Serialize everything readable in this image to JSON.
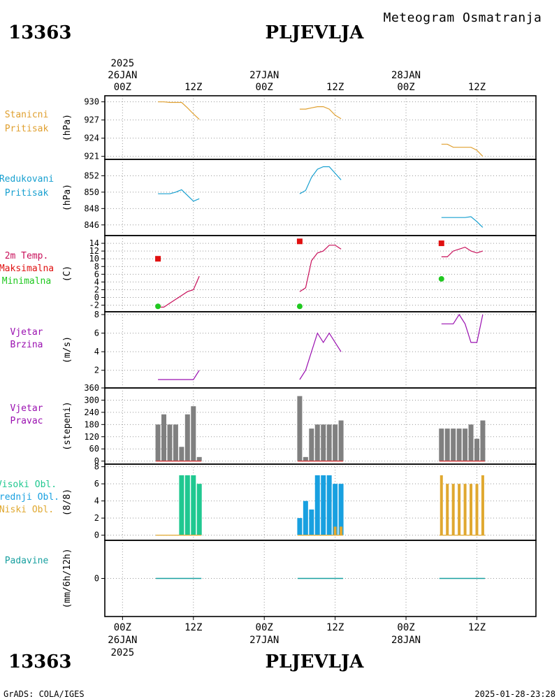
{
  "header": {
    "station_id": "13363",
    "station_name": "PLJEVLJA",
    "subtitle": "Meteogram Osmatranja"
  },
  "footer": {
    "station_id": "13363",
    "station_name": "PLJEVLJA",
    "credit": "GrADS: COLA/IGES",
    "timestamp": "2025-01-28-23:28"
  },
  "time_axis": {
    "top_year": "2025",
    "bottom_year": "2025",
    "hour_labels": [
      "00Z",
      "12Z",
      "00Z",
      "12Z",
      "00Z",
      "12Z"
    ],
    "hour_values": [
      0,
      12,
      24,
      36,
      48,
      60
    ],
    "day_labels": [
      {
        "label": "26JAN",
        "t": 0
      },
      {
        "label": "27JAN",
        "t": 24
      },
      {
        "label": "28JAN",
        "t": 48
      }
    ],
    "range": [
      -3,
      70
    ]
  },
  "colors": {
    "station_pressure": "#e0a030",
    "reduced_pressure": "#18a0d0",
    "temperature": "#c8105a",
    "maximum": "#e01010",
    "minimum": "#20c820",
    "wind": "#9a10b0",
    "direction_bar": "#808080",
    "direction_calm": "#d04040",
    "high_cloud": "#20c890",
    "mid_cloud": "#18a0e0",
    "low_cloud": "#e0a830",
    "precip": "#18a0a0"
  },
  "chart_data": [
    {
      "type": "line",
      "id": "station_pressure",
      "labels": [
        "Stanicni",
        "Pritisak"
      ],
      "ylabel": "(hPa)",
      "yticks": [
        "930",
        "927",
        "924",
        "921"
      ],
      "ylim": [
        920.5,
        931
      ],
      "tickvals": [
        930,
        927,
        924,
        921
      ],
      "series": [
        {
          "x": [
            6,
            7,
            8,
            9,
            10,
            11,
            12,
            13
          ],
          "y": [
            930,
            930,
            929.9,
            929.9,
            929.9,
            929,
            928,
            927.1
          ]
        },
        {
          "x": [
            30,
            31,
            32,
            33,
            34,
            35,
            36,
            37
          ],
          "y": [
            928.8,
            928.8,
            929,
            929.2,
            929.2,
            928.8,
            927.8,
            927.2
          ]
        },
        {
          "x": [
            54,
            55,
            56,
            57,
            58,
            59,
            60,
            61
          ],
          "y": [
            923,
            923,
            922.5,
            922.5,
            922.5,
            922.5,
            922,
            921
          ]
        }
      ]
    },
    {
      "type": "line",
      "id": "reduced_pressure",
      "labels": [
        "Redukovani",
        "Pritisak"
      ],
      "ylabel": "(hPa)",
      "yticks": [
        "852",
        "850",
        "848",
        "846"
      ],
      "ylim": [
        844.7,
        854
      ],
      "tickvals": [
        852,
        850,
        848,
        846
      ],
      "series": [
        {
          "x": [
            6,
            7,
            8,
            9,
            10,
            11,
            12,
            13
          ],
          "y": [
            849.8,
            849.8,
            849.8,
            850.0,
            850.3,
            849.6,
            848.9,
            849.2
          ]
        },
        {
          "x": [
            30,
            31,
            32,
            33,
            34,
            35,
            36,
            37
          ],
          "y": [
            849.8,
            850.2,
            851.8,
            852.8,
            853.1,
            853.1,
            852.3,
            851.5
          ]
        },
        {
          "x": [
            54,
            55,
            56,
            57,
            58,
            59,
            60,
            61
          ],
          "y": [
            846.9,
            846.9,
            846.9,
            846.9,
            846.9,
            847.0,
            846.4,
            845.7
          ]
        }
      ]
    },
    {
      "type": "line",
      "id": "temperature",
      "labels": [
        "2m Temp.",
        "Maksimalna",
        "Minimalna"
      ],
      "ylabel": "(C)",
      "yticks": [
        "14",
        "12",
        "10",
        "8",
        "6",
        "4",
        "2",
        "0",
        "-2"
      ],
      "ylim": [
        -3.7,
        16
      ],
      "tickvals": [
        14,
        12,
        10,
        8,
        6,
        4,
        2,
        0,
        -2
      ],
      "series": [
        {
          "x": [
            6,
            7,
            8,
            9,
            10,
            11,
            12,
            13
          ],
          "y": [
            -2.5,
            -2.5,
            -1.5,
            -0.5,
            0.5,
            1.5,
            2,
            5.5
          ]
        },
        {
          "x": [
            30,
            31,
            32,
            33,
            34,
            35,
            36,
            37
          ],
          "y": [
            1.5,
            2.5,
            9.5,
            11.5,
            12,
            13.5,
            13.5,
            12.5
          ]
        },
        {
          "x": [
            54,
            55,
            56,
            57,
            58,
            59,
            60,
            61
          ],
          "y": [
            10.5,
            10.5,
            12,
            12.5,
            13,
            12,
            11.5,
            12
          ]
        }
      ],
      "max_points": [
        {
          "x": 6,
          "y": 10
        },
        {
          "x": 30,
          "y": 14.5
        },
        {
          "x": 54,
          "y": 14
        }
      ],
      "min_points": [
        {
          "x": 6,
          "y": -2.3
        },
        {
          "x": 30,
          "y": -2.3
        },
        {
          "x": 54,
          "y": 4.8
        }
      ]
    },
    {
      "type": "line",
      "id": "wind_speed",
      "labels": [
        "Vjetar",
        "Brzina"
      ],
      "ylabel": "(m/s)",
      "yticks": [
        "8",
        "6",
        "4",
        "2"
      ],
      "ylim": [
        0.1,
        8.3
      ],
      "tickvals": [
        8,
        6,
        4,
        2
      ],
      "series": [
        {
          "x": [
            6,
            7,
            8,
            9,
            10,
            11,
            12,
            13
          ],
          "y": [
            1,
            1,
            1,
            1,
            1,
            1,
            1,
            2
          ]
        },
        {
          "x": [
            30,
            31,
            32,
            33,
            34,
            35,
            36,
            37
          ],
          "y": [
            1,
            2,
            4,
            6,
            5,
            6,
            5,
            4
          ]
        },
        {
          "x": [
            54,
            55,
            56,
            57,
            58,
            59,
            60,
            61
          ],
          "y": [
            7,
            7,
            7,
            8,
            7,
            5,
            5,
            8
          ]
        }
      ]
    },
    {
      "type": "bar",
      "id": "wind_direction",
      "labels": [
        "Vjetar",
        "Pravac"
      ],
      "ylabel": "(stepeni)",
      "yticks": [
        "360",
        "300",
        "240",
        "180",
        "120",
        "60",
        "0"
      ],
      "ylim": [
        -15,
        360
      ],
      "tickvals": [
        360,
        300,
        240,
        180,
        120,
        60,
        0
      ],
      "x": [
        6,
        7,
        8,
        9,
        10,
        11,
        12,
        13,
        30,
        31,
        32,
        33,
        34,
        35,
        36,
        37,
        54,
        55,
        56,
        57,
        58,
        59,
        60,
        61
      ],
      "values": [
        180,
        230,
        180,
        180,
        70,
        230,
        270,
        20,
        320,
        20,
        160,
        180,
        180,
        180,
        180,
        200,
        160,
        160,
        160,
        160,
        160,
        180,
        110,
        200
      ]
    },
    {
      "type": "bar",
      "id": "clouds",
      "labels": [
        "Visoki Obl.",
        "Srednji Obl.",
        "Niski Obl."
      ],
      "ylabel": "(8/8)",
      "yticks": [
        "8",
        "6",
        "4",
        "2",
        "0"
      ],
      "ylim": [
        -0.6,
        8.3
      ],
      "tickvals": [
        8,
        6,
        4,
        2,
        0
      ],
      "series": [
        {
          "name": "Visoki Obl.",
          "x": [
            6,
            7,
            8,
            9,
            10,
            11,
            12,
            13
          ],
          "values": [
            0,
            0,
            0,
            0,
            7,
            7,
            7,
            6
          ]
        },
        {
          "name": "Srednji Obl.",
          "x": [
            30,
            31,
            32,
            33,
            34,
            35,
            36,
            37
          ],
          "values": [
            2,
            4,
            3,
            7,
            7,
            7,
            6,
            6
          ]
        },
        {
          "name": "Niski Obl.",
          "x": [
            36,
            37,
            54,
            55,
            56,
            57,
            58,
            59,
            60,
            61
          ],
          "values": [
            1,
            1,
            7,
            6,
            6,
            6,
            6,
            6,
            6,
            7
          ]
        }
      ]
    },
    {
      "type": "bar",
      "id": "precipitation",
      "labels": [
        "Padavine"
      ],
      "ylabel": "(mm/6h/12h)",
      "yticks": [
        "0"
      ],
      "ylim": [
        -4,
        4
      ],
      "tickvals": [
        0
      ],
      "x": [
        6,
        13,
        30,
        37,
        54,
        61
      ],
      "values": [
        0,
        0,
        0,
        0,
        0,
        0
      ]
    }
  ]
}
